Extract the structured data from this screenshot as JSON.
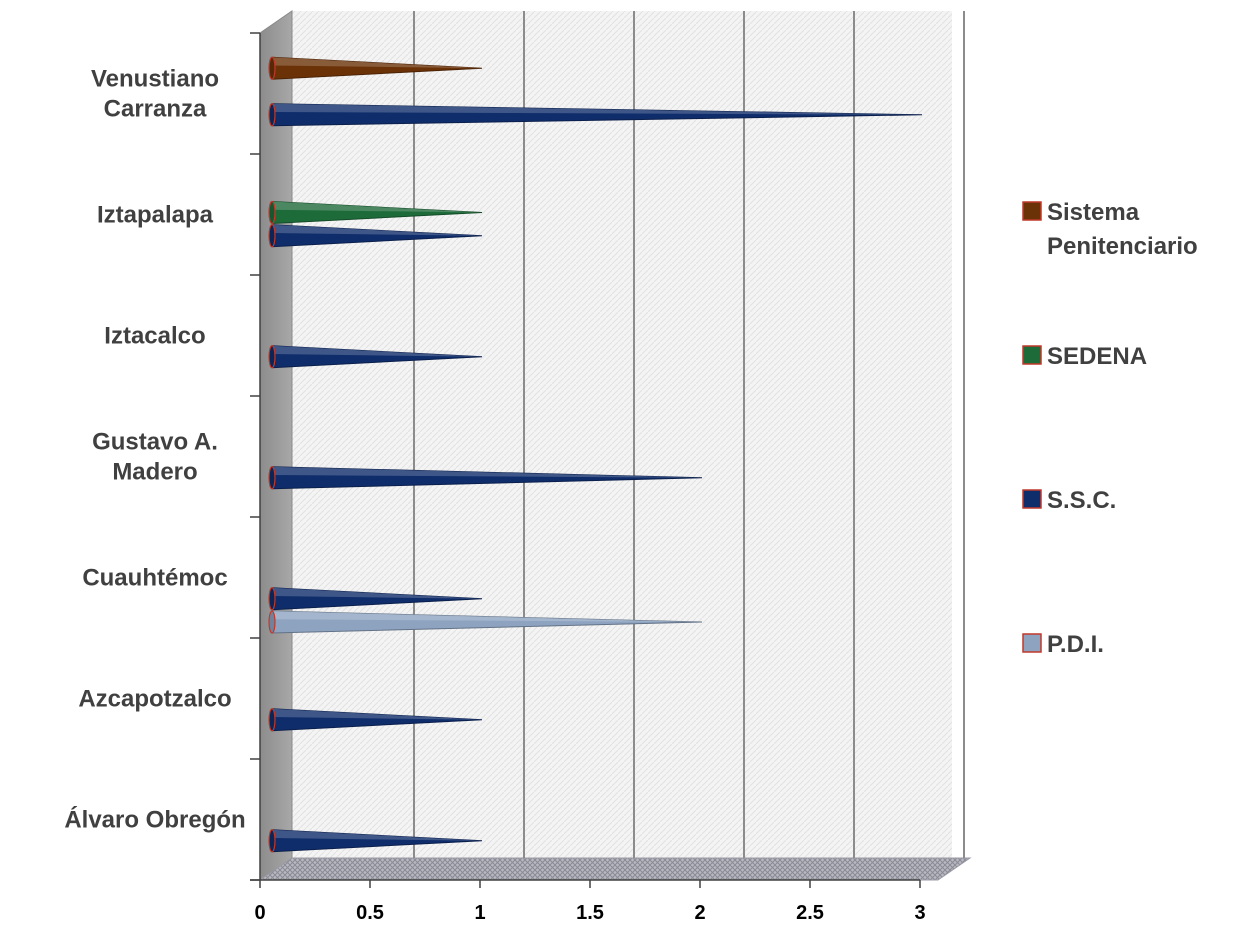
{
  "chart_data": {
    "type": "bar",
    "orientation": "horizontal",
    "style": "3d-cone",
    "categories": [
      "Álvaro Obregón",
      "Azcapotzalco",
      "Cuauhtémoc",
      "Gustavo A. Madero",
      "Iztacalco",
      "Iztapalapa",
      "Venustiano Carranza"
    ],
    "category_lines": [
      [
        "Álvaro Obregón"
      ],
      [
        "Azcapotzalco"
      ],
      [
        "Cuauhtémoc"
      ],
      [
        "Gustavo A.",
        "Madero"
      ],
      [
        "Iztacalco"
      ],
      [
        "Iztapalapa"
      ],
      [
        "Venustiano",
        "Carranza"
      ]
    ],
    "series": [
      {
        "name": "P.D.I.",
        "values": [
          0,
          0,
          2,
          0,
          0,
          0,
          0
        ],
        "color": "#8EA3C0"
      },
      {
        "name": "S.S.C.",
        "values": [
          1,
          1,
          1,
          2,
          1,
          1,
          3
        ],
        "color": "#0F2D6B"
      },
      {
        "name": "SEDENA",
        "values": [
          0,
          0,
          0,
          0,
          0,
          1,
          0
        ],
        "color": "#1E6B3A"
      },
      {
        "name": "Sistema Penitenciario",
        "values": [
          0,
          0,
          0,
          0,
          0,
          0,
          1
        ],
        "color": "#6B3208"
      }
    ],
    "legend_order": [
      {
        "lines": [
          "Sistema",
          "Penitenciario"
        ],
        "series": 3
      },
      {
        "lines": [
          "SEDENA"
        ],
        "series": 2
      },
      {
        "lines": [
          "S.S.C."
        ],
        "series": 1
      },
      {
        "lines": [
          "P.D.I."
        ],
        "series": 0
      }
    ],
    "x_ticks": [
      "0",
      "0.5",
      "1",
      "1.5",
      "2",
      "2.5",
      "3"
    ],
    "xlim": [
      0,
      3
    ],
    "grid": true,
    "legend_position": "right"
  }
}
